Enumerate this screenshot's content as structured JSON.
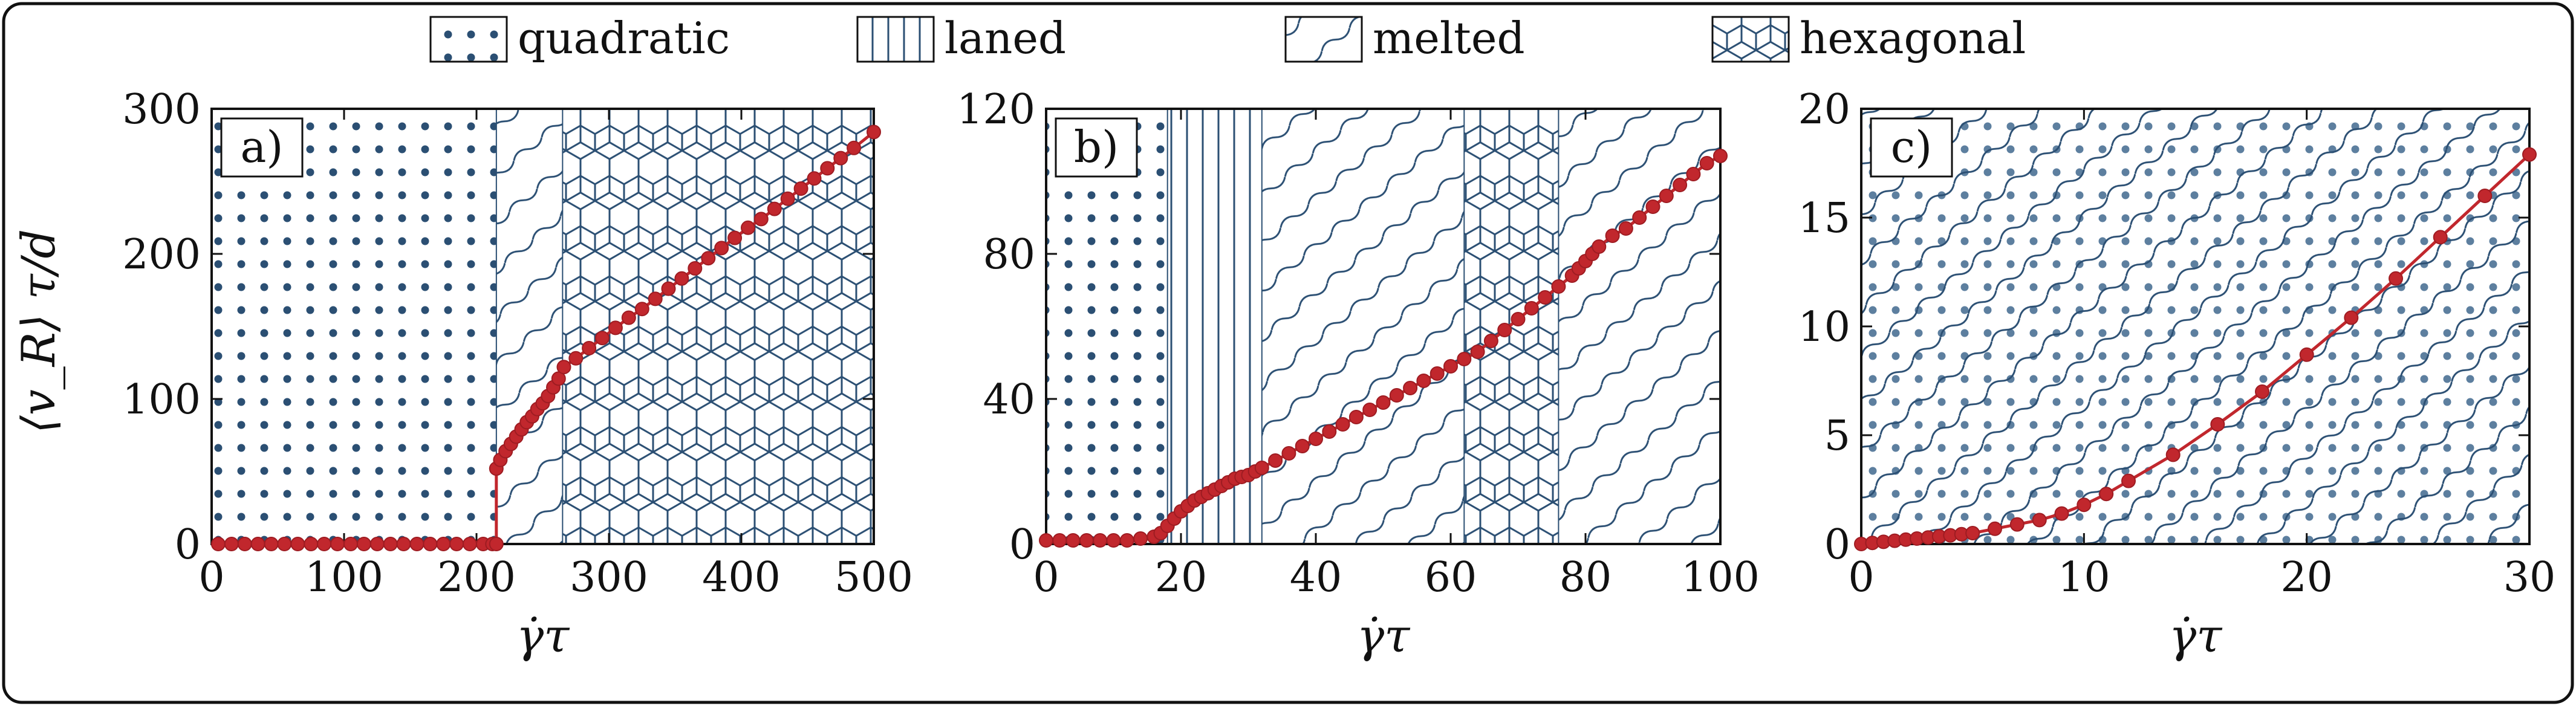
{
  "colors": {
    "pattern": "#2b4f73",
    "curve": "#c1272d",
    "frame": "#111111",
    "background": "#ffffff"
  },
  "legend": [
    {
      "label": "quadratic",
      "pattern": "dots"
    },
    {
      "label": "laned",
      "pattern": "lanes"
    },
    {
      "label": "melted",
      "pattern": "waves"
    },
    {
      "label": "hexagonal",
      "pattern": "hex"
    }
  ],
  "chart_data": [
    {
      "type": "line",
      "panel_label": "a)",
      "xlabel": "γ̇τ",
      "ylabel": "⟨v_R⟩ τ/d",
      "xlim": [
        0,
        500
      ],
      "ylim": [
        0,
        300
      ],
      "xticks": [
        0,
        100,
        200,
        300,
        400,
        500
      ],
      "yticks": [
        0,
        100,
        200,
        300
      ],
      "xtick_labels": [
        "0",
        "100",
        "200",
        "300",
        "400",
        "500"
      ],
      "ytick_labels": [
        "0",
        "100",
        "200",
        "300"
      ],
      "regions": [
        {
          "phase": "quadratic",
          "x": [
            0,
            215
          ]
        },
        {
          "phase": "melted",
          "x": [
            215,
            265
          ]
        },
        {
          "phase": "hexagonal",
          "x": [
            265,
            500
          ]
        }
      ],
      "series": [
        {
          "x": [
            5,
            15,
            25,
            35,
            45,
            55,
            65,
            75,
            85,
            95,
            105,
            115,
            125,
            135,
            145,
            155,
            165,
            175,
            185,
            195,
            205,
            212,
            215,
            215,
            218,
            222,
            226,
            230,
            234,
            238,
            242,
            246,
            250,
            254,
            258,
            262,
            266,
            275,
            285,
            295,
            305,
            315,
            325,
            335,
            345,
            355,
            365,
            375,
            385,
            395,
            405,
            415,
            425,
            435,
            445,
            455,
            465,
            475,
            485,
            500
          ],
          "y": [
            0,
            0,
            0,
            0,
            0,
            0,
            0,
            0,
            0,
            0,
            0,
            0,
            0,
            0,
            0,
            0,
            0,
            0,
            0,
            0,
            0,
            0,
            0,
            52,
            58,
            64,
            69,
            74,
            79,
            84,
            88,
            93,
            97,
            102,
            108,
            114,
            122,
            128,
            135,
            142,
            149,
            156,
            162,
            169,
            176,
            183,
            190,
            197,
            204,
            211,
            218,
            224,
            231,
            238,
            245,
            252,
            259,
            266,
            273,
            284
          ]
        }
      ]
    },
    {
      "type": "line",
      "panel_label": "b)",
      "xlabel": "γ̇τ",
      "ylabel": "",
      "xlim": [
        0,
        100
      ],
      "ylim": [
        0,
        120
      ],
      "xticks": [
        0,
        20,
        40,
        60,
        80,
        100
      ],
      "yticks": [
        0,
        40,
        80,
        120
      ],
      "xtick_labels": [
        "0",
        "20",
        "40",
        "60",
        "80",
        "100"
      ],
      "ytick_labels": [
        "0",
        "40",
        "80",
        "120"
      ],
      "regions": [
        {
          "phase": "quadratic",
          "x": [
            0,
            18
          ]
        },
        {
          "phase": "laned",
          "x": [
            18,
            32
          ]
        },
        {
          "phase": "melted",
          "x": [
            32,
            62
          ]
        },
        {
          "phase": "hexagonal",
          "x": [
            62,
            76
          ]
        },
        {
          "phase": "melted",
          "x": [
            76,
            100
          ]
        }
      ],
      "series": [
        {
          "x": [
            0,
            2,
            4,
            6,
            8,
            10,
            12,
            14,
            16,
            17,
            18,
            19,
            20,
            21,
            22,
            23,
            24,
            25,
            26,
            27,
            28,
            29,
            30,
            31,
            32,
            34,
            36,
            38,
            40,
            42,
            44,
            46,
            48,
            50,
            52,
            54,
            56,
            58,
            60,
            62,
            64,
            66,
            68,
            70,
            72,
            74,
            76,
            78,
            79,
            80,
            81,
            82,
            84,
            86,
            88,
            90,
            92,
            94,
            96,
            98,
            100
          ],
          "y": [
            1,
            1,
            1,
            1,
            1,
            1,
            1,
            1.5,
            2,
            3,
            5,
            7,
            9,
            10.5,
            12,
            13,
            14,
            15,
            16,
            17,
            18,
            18.5,
            19,
            20,
            21,
            23,
            25,
            27,
            29,
            31,
            33,
            35,
            37,
            39,
            41,
            43,
            45,
            47,
            49,
            51,
            53,
            56,
            59,
            62,
            65,
            68,
            71,
            74,
            76,
            78,
            80,
            82,
            85,
            87,
            90,
            93,
            96,
            99,
            102,
            105,
            107
          ]
        }
      ]
    },
    {
      "type": "line",
      "panel_label": "c)",
      "xlabel": "γ̇τ",
      "ylabel": "",
      "xlim": [
        0,
        30
      ],
      "ylim": [
        0,
        20
      ],
      "xticks": [
        0,
        10,
        20,
        30
      ],
      "yticks": [
        0,
        5,
        10,
        15,
        20
      ],
      "xtick_labels": [
        "0",
        "10",
        "20",
        "30"
      ],
      "ytick_labels": [
        "0",
        "5",
        "10",
        "15",
        "20"
      ],
      "regions": [
        {
          "phase": "quadratic+melted",
          "x": [
            0,
            30
          ]
        }
      ],
      "series": [
        {
          "x": [
            0,
            0.5,
            1,
            1.5,
            2,
            2.5,
            3,
            3.5,
            4,
            4.5,
            5,
            6,
            7,
            8,
            9,
            10,
            11,
            12,
            14,
            16,
            18,
            20,
            22,
            24,
            26,
            28,
            30
          ],
          "y": [
            0,
            0.05,
            0.1,
            0.15,
            0.2,
            0.25,
            0.3,
            0.35,
            0.4,
            0.45,
            0.5,
            0.7,
            0.9,
            1.1,
            1.4,
            1.8,
            2.3,
            2.9,
            4.1,
            5.5,
            7.0,
            8.7,
            10.4,
            12.2,
            14.1,
            16.0,
            17.9
          ]
        }
      ]
    }
  ]
}
